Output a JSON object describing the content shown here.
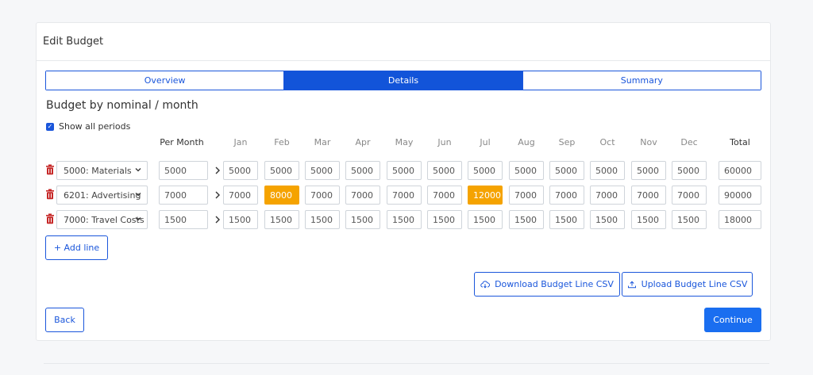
{
  "card": {
    "title": "Edit Budget"
  },
  "tabs": [
    {
      "label": "Overview",
      "active": false
    },
    {
      "label": "Details",
      "active": true
    },
    {
      "label": "Summary",
      "active": false
    }
  ],
  "section_title": "Budget by nominal / month",
  "show_all_periods": {
    "label": "Show all periods",
    "checked": true
  },
  "columns": {
    "per_month": "Per Month",
    "months": [
      "Jan",
      "Feb",
      "Mar",
      "Apr",
      "May",
      "Jun",
      "Jul",
      "Aug",
      "Sep",
      "Oct",
      "Nov",
      "Dec"
    ],
    "total": "Total"
  },
  "rows": [
    {
      "nominal": "5000: Materials",
      "per_month": "5000",
      "months": [
        "5000",
        "5000",
        "5000",
        "5000",
        "5000",
        "5000",
        "5000",
        "5000",
        "5000",
        "5000",
        "5000",
        "5000"
      ],
      "highlighted": [],
      "total": "60000"
    },
    {
      "nominal": "6201: Advertising",
      "per_month": "7000",
      "months": [
        "7000",
        "8000",
        "7000",
        "7000",
        "7000",
        "7000",
        "12000",
        "7000",
        "7000",
        "7000",
        "7000",
        "7000"
      ],
      "highlighted": [
        1,
        6
      ],
      "highlight_color": "#f5a300",
      "total": "90000"
    },
    {
      "nominal": "7000: Travel Costs",
      "per_month": "1500",
      "months": [
        "1500",
        "1500",
        "1500",
        "1500",
        "1500",
        "1500",
        "1500",
        "1500",
        "1500",
        "1500",
        "1500",
        "1500"
      ],
      "highlighted": [],
      "total": "18000"
    }
  ],
  "buttons": {
    "add_line": "+ Add line",
    "download_csv": "Download Budget Line CSV",
    "upload_csv": "Upload Budget Line CSV",
    "back": "Back",
    "continue": "Continue"
  },
  "colors": {
    "primary": "#1a56db",
    "highlight": "#f5a300",
    "trash": "#c62828"
  }
}
